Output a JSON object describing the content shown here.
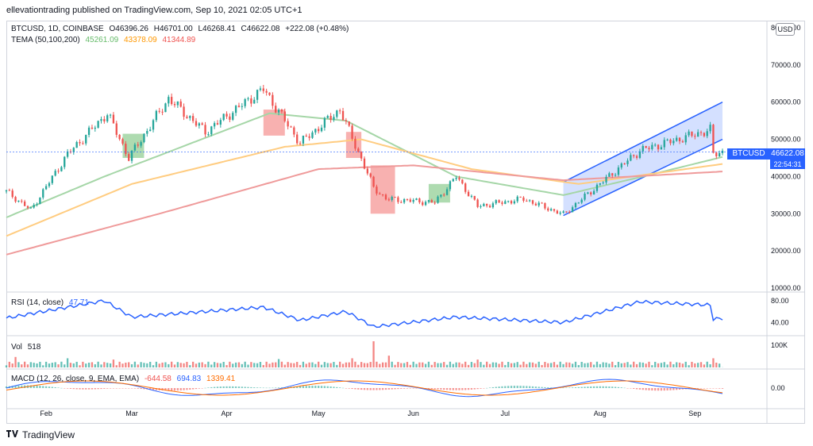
{
  "header": {
    "publisher_line": "ellevationtrading published on TradingView.com, Sep 10, 2021 02:05 UTC+1"
  },
  "legend": {
    "symbol": "BTCUSD, 1D, COINBASE",
    "open": "O46396.26",
    "high": "H46701.00",
    "low": "L46268.41",
    "close": "C46622.08",
    "change": "+222.08 (+0.48%)",
    "tema_label": "TEMA (50,100,200)",
    "tema_values": [
      "45261.09",
      "43378.09",
      "41344.89"
    ],
    "rsi_label": "RSI (14, close)",
    "rsi_value": "47.71",
    "vol_label": "Vol",
    "vol_value": "518",
    "macd_label": "MACD (12, 26, close, 9, EMA, EMA)",
    "macd_values": [
      "-644.58",
      "694.83",
      "1339.41"
    ]
  },
  "axis": {
    "price_ticks": [
      "80000.00",
      "70000.00",
      "60000.00",
      "50000.00",
      "40000.00",
      "30000.00",
      "20000.00",
      "10000.00"
    ],
    "rsi_ticks": [
      "80.00",
      "40.00"
    ],
    "vol_ticks": [
      "100K"
    ],
    "macd_ticks": [
      "0.00"
    ],
    "unit_button": "USD",
    "months": [
      "Feb",
      "Mar",
      "Apr",
      "May",
      "Jun",
      "Jul",
      "Aug",
      "Sep"
    ]
  },
  "price_tag": {
    "symbol": "BTCUSD",
    "price": "46622.08",
    "countdown": "22:54:31"
  },
  "footer": {
    "brand": "TradingView"
  },
  "colors": {
    "up": "#26a69a",
    "down": "#ef5350",
    "tema1": "#a5d6a7",
    "tema2": "#ffcc80",
    "tema3": "#ef9a9a",
    "rsi": "#2962ff",
    "macd": "#2962ff",
    "signal": "#ff6d00",
    "channel": "#2962ff"
  },
  "chart_data": {
    "type": "candlestick",
    "x_range": [
      "2021-01-19",
      "2021-09-10"
    ],
    "price_ylim": [
      10000,
      80000
    ],
    "price_keypoints": [
      [
        "2021-01-19",
        36000
      ],
      [
        "2021-01-27",
        31000
      ],
      [
        "2021-02-08",
        46000
      ],
      [
        "2021-02-21",
        57000
      ],
      [
        "2021-02-28",
        45000
      ],
      [
        "2021-03-13",
        61000
      ],
      [
        "2021-03-25",
        52000
      ],
      [
        "2021-04-13",
        63500
      ],
      [
        "2021-04-25",
        49000
      ],
      [
        "2021-05-08",
        58000
      ],
      [
        "2021-05-19",
        37000
      ],
      [
        "2021-05-23",
        34000
      ],
      [
        "2021-06-08",
        33000
      ],
      [
        "2021-06-15",
        40000
      ],
      [
        "2021-06-22",
        32000
      ],
      [
        "2021-07-07",
        34000
      ],
      [
        "2021-07-20",
        29800
      ],
      [
        "2021-08-14",
        47000
      ],
      [
        "2021-09-06",
        52500
      ],
      [
        "2021-09-07",
        46000
      ],
      [
        "2021-09-10",
        46622
      ]
    ],
    "tema": [
      {
        "name": "TEMA 50",
        "points": [
          [
            "2021-01-19",
            29000
          ],
          [
            "2021-02-20",
            40000
          ],
          [
            "2021-04-15",
            57000
          ],
          [
            "2021-05-10",
            55000
          ],
          [
            "2021-06-15",
            40000
          ],
          [
            "2021-07-20",
            35000
          ],
          [
            "2021-08-15",
            40000
          ],
          [
            "2021-09-10",
            45261
          ]
        ]
      },
      {
        "name": "TEMA 100",
        "points": [
          [
            "2021-01-19",
            24000
          ],
          [
            "2021-03-01",
            38000
          ],
          [
            "2021-04-20",
            48000
          ],
          [
            "2021-05-15",
            50000
          ],
          [
            "2021-06-20",
            42000
          ],
          [
            "2021-07-25",
            38000
          ],
          [
            "2021-09-10",
            43378
          ]
        ]
      },
      {
        "name": "TEMA 200",
        "points": [
          [
            "2021-01-19",
            19000
          ],
          [
            "2021-03-10",
            30000
          ],
          [
            "2021-05-01",
            42000
          ],
          [
            "2021-06-01",
            43000
          ],
          [
            "2021-07-20",
            39000
          ],
          [
            "2021-09-10",
            41344
          ]
        ]
      }
    ],
    "channel": {
      "lower": [
        [
          "2021-07-20",
          29500
        ],
        [
          "2021-09-10",
          50000
        ]
      ],
      "upper": [
        [
          "2021-07-20",
          38500
        ],
        [
          "2021-09-10",
          60000
        ]
      ]
    },
    "highlight_boxes": [
      {
        "from": "2021-02-26",
        "to": "2021-03-05",
        "low": 45000,
        "high": 51500,
        "color": "green"
      },
      {
        "from": "2021-04-13",
        "to": "2021-04-20",
        "low": 51000,
        "high": 58000,
        "color": "red"
      },
      {
        "from": "2021-05-10",
        "to": "2021-05-15",
        "low": 45000,
        "high": 52000,
        "color": "red"
      },
      {
        "from": "2021-05-18",
        "to": "2021-05-26",
        "low": 30000,
        "high": 43000,
        "color": "red"
      },
      {
        "from": "2021-06-06",
        "to": "2021-06-13",
        "low": 33000,
        "high": 38000,
        "color": "green"
      }
    ],
    "rsi_ylim": [
      20,
      90
    ],
    "rsi_keypoints": [
      [
        "2021-01-19",
        48
      ],
      [
        "2021-02-20",
        80
      ],
      [
        "2021-03-01",
        50
      ],
      [
        "2021-04-13",
        68
      ],
      [
        "2021-04-25",
        44
      ],
      [
        "2021-05-10",
        60
      ],
      [
        "2021-05-19",
        32
      ],
      [
        "2021-06-15",
        50
      ],
      [
        "2021-07-20",
        40
      ],
      [
        "2021-08-14",
        78
      ],
      [
        "2021-09-06",
        72
      ],
      [
        "2021-09-07",
        46
      ],
      [
        "2021-09-10",
        47.71
      ]
    ],
    "vol_max": 100000,
    "vol_spikes": [
      [
        "2021-01-22",
        40000
      ],
      [
        "2021-02-08",
        35000
      ],
      [
        "2021-02-23",
        30000
      ],
      [
        "2021-04-18",
        32000
      ],
      [
        "2021-05-12",
        35000
      ],
      [
        "2021-05-19",
        100000
      ],
      [
        "2021-05-24",
        45000
      ],
      [
        "2021-06-22",
        30000
      ],
      [
        "2021-09-07",
        35000
      ],
      [
        "2021-09-10",
        518
      ]
    ],
    "macd": {
      "macd": -644.58,
      "signal": 694.83,
      "histogram": 1339.41
    }
  }
}
